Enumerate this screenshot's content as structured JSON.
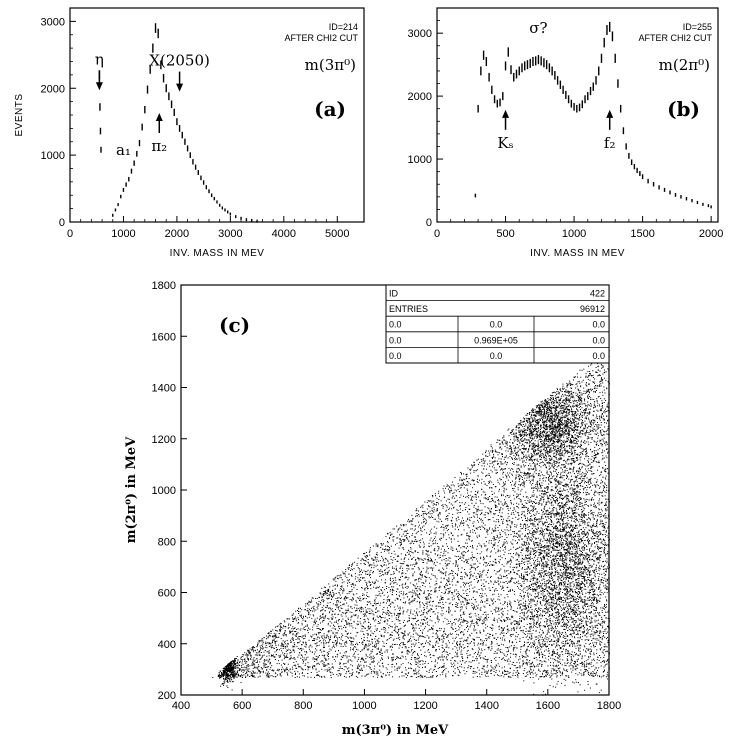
{
  "chart_data": [
    {
      "type": "histogram",
      "panel_label": "(a)",
      "id_text": "ID=214",
      "cut_text": "AFTER CHI2 CUT",
      "channel_label": "m(3π⁰)",
      "xlabel": "INV. MASS IN MEV",
      "ylabel": "EVENTS",
      "xlim": [
        0,
        5500
      ],
      "ylim": [
        0,
        3200
      ],
      "xticks": [
        0,
        1000,
        2000,
        3000,
        4000,
        5000
      ],
      "yticks": [
        0,
        1000,
        2000,
        3000
      ],
      "annotations": [
        {
          "text": "η",
          "x": 550,
          "y": 2000,
          "arrow": "down"
        },
        {
          "text": "a₁",
          "x": 1000,
          "y": 1000,
          "arrow": "none"
        },
        {
          "text": "π₂",
          "x": 1670,
          "y": 1600,
          "arrow": "up"
        },
        {
          "text": "X(2050)",
          "x": 2050,
          "y": 1980,
          "arrow": "down"
        }
      ],
      "points": [
        [
          550,
          2200
        ],
        [
          560,
          1720
        ],
        [
          570,
          1360
        ],
        [
          580,
          1080
        ],
        [
          800,
          100
        ],
        [
          850,
          180
        ],
        [
          900,
          260
        ],
        [
          950,
          380
        ],
        [
          1000,
          480
        ],
        [
          1050,
          560
        ],
        [
          1100,
          640
        ],
        [
          1150,
          760
        ],
        [
          1200,
          880
        ],
        [
          1250,
          1020
        ],
        [
          1300,
          1180
        ],
        [
          1350,
          1420
        ],
        [
          1400,
          1680
        ],
        [
          1450,
          1980
        ],
        [
          1500,
          2280
        ],
        [
          1550,
          2600
        ],
        [
          1600,
          2900
        ],
        [
          1650,
          2820
        ],
        [
          1700,
          2350
        ],
        [
          1750,
          2150
        ],
        [
          1800,
          2000
        ],
        [
          1850,
          1880
        ],
        [
          1900,
          1760
        ],
        [
          1950,
          1640
        ],
        [
          2000,
          1500
        ],
        [
          2050,
          1400
        ],
        [
          2100,
          1300
        ],
        [
          2150,
          1200
        ],
        [
          2200,
          1100
        ],
        [
          2250,
          1000
        ],
        [
          2300,
          900
        ],
        [
          2350,
          820
        ],
        [
          2400,
          740
        ],
        [
          2450,
          660
        ],
        [
          2500,
          590
        ],
        [
          2550,
          520
        ],
        [
          2600,
          460
        ],
        [
          2650,
          400
        ],
        [
          2700,
          350
        ],
        [
          2750,
          300
        ],
        [
          2800,
          250
        ],
        [
          2850,
          210
        ],
        [
          2900,
          180
        ],
        [
          2950,
          150
        ],
        [
          3000,
          120
        ],
        [
          3100,
          80
        ],
        [
          3200,
          55
        ],
        [
          3300,
          35
        ],
        [
          3400,
          22
        ],
        [
          3500,
          12
        ]
      ]
    },
    {
      "type": "histogram",
      "panel_label": "(b)",
      "id_text": "ID=255",
      "cut_text": "AFTER CHI2 CUT",
      "channel_label": "m(2π⁰)",
      "xlabel": "INV. MASS IN MEV",
      "ylabel": "",
      "xlim": [
        0,
        2050
      ],
      "ylim": [
        0,
        3400
      ],
      "xticks": [
        0,
        500,
        1000,
        1500,
        2000
      ],
      "yticks": [
        0,
        1000,
        2000,
        3000
      ],
      "annotations": [
        {
          "text": "σ?",
          "x": 740,
          "y": 3000,
          "arrow": "none"
        },
        {
          "text": "Kₛ",
          "x": 500,
          "y": 1750,
          "arrow": "up"
        },
        {
          "text": "f₂",
          "x": 1260,
          "y": 1750,
          "arrow": "up"
        }
      ],
      "points": [
        [
          280,
          420
        ],
        [
          300,
          1800
        ],
        [
          320,
          2400
        ],
        [
          340,
          2650
        ],
        [
          360,
          2550
        ],
        [
          380,
          2300
        ],
        [
          400,
          2100
        ],
        [
          420,
          1950
        ],
        [
          440,
          1880
        ],
        [
          460,
          1900
        ],
        [
          480,
          2000
        ],
        [
          500,
          2480
        ],
        [
          520,
          2700
        ],
        [
          540,
          2420
        ],
        [
          560,
          2300
        ],
        [
          580,
          2350
        ],
        [
          600,
          2400
        ],
        [
          620,
          2450
        ],
        [
          640,
          2480
        ],
        [
          660,
          2500
        ],
        [
          680,
          2520
        ],
        [
          700,
          2550
        ],
        [
          720,
          2560
        ],
        [
          740,
          2580
        ],
        [
          760,
          2560
        ],
        [
          780,
          2530
        ],
        [
          800,
          2500
        ],
        [
          820,
          2450
        ],
        [
          840,
          2400
        ],
        [
          860,
          2330
        ],
        [
          880,
          2250
        ],
        [
          900,
          2180
        ],
        [
          920,
          2100
        ],
        [
          940,
          2020
        ],
        [
          960,
          1950
        ],
        [
          980,
          1880
        ],
        [
          1000,
          1830
        ],
        [
          1020,
          1800
        ],
        [
          1040,
          1820
        ],
        [
          1060,
          1870
        ],
        [
          1080,
          1950
        ],
        [
          1100,
          2000
        ],
        [
          1120,
          2080
        ],
        [
          1140,
          2150
        ],
        [
          1160,
          2250
        ],
        [
          1180,
          2400
        ],
        [
          1200,
          2600
        ],
        [
          1220,
          2850
        ],
        [
          1240,
          3050
        ],
        [
          1260,
          3100
        ],
        [
          1280,
          2950
        ],
        [
          1300,
          2600
        ],
        [
          1320,
          2200
        ],
        [
          1340,
          1800
        ],
        [
          1360,
          1450
        ],
        [
          1380,
          1200
        ],
        [
          1400,
          1050
        ],
        [
          1420,
          950
        ],
        [
          1440,
          880
        ],
        [
          1460,
          820
        ],
        [
          1480,
          770
        ],
        [
          1500,
          720
        ],
        [
          1540,
          650
        ],
        [
          1580,
          600
        ],
        [
          1620,
          550
        ],
        [
          1660,
          510
        ],
        [
          1700,
          470
        ],
        [
          1740,
          430
        ],
        [
          1780,
          400
        ],
        [
          1820,
          370
        ],
        [
          1860,
          340
        ],
        [
          1900,
          310
        ],
        [
          1940,
          280
        ],
        [
          1980,
          260
        ],
        [
          2000,
          240
        ]
      ]
    },
    {
      "type": "scatter",
      "panel_label": "(c)",
      "xlabel": "m(3π⁰) in MeV",
      "ylabel": "m(2π⁰) in MeV",
      "xlim": [
        400,
        1800
      ],
      "ylim": [
        200,
        1800
      ],
      "xticks": [
        400,
        600,
        800,
        1000,
        1200,
        1400,
        1600,
        1800
      ],
      "yticks": [
        200,
        400,
        600,
        800,
        1000,
        1200,
        1400,
        1600,
        1800
      ],
      "stats_box": {
        "rows": [
          [
            "ID",
            "",
            "422"
          ],
          [
            "ENTRIES",
            "",
            "96912"
          ],
          [
            "0.0",
            "0.0",
            "0.0"
          ],
          [
            "0.0",
            "0.969E+05",
            "0.0"
          ],
          [
            "0.0",
            "0.0",
            "0.0"
          ]
        ]
      },
      "clusters": [
        {
          "x": 550,
          "y": 330,
          "density": "high"
        },
        {
          "x": 1600,
          "y": 1270,
          "density": "high"
        },
        {
          "x": 1650,
          "y": 700,
          "density": "high"
        }
      ]
    }
  ]
}
